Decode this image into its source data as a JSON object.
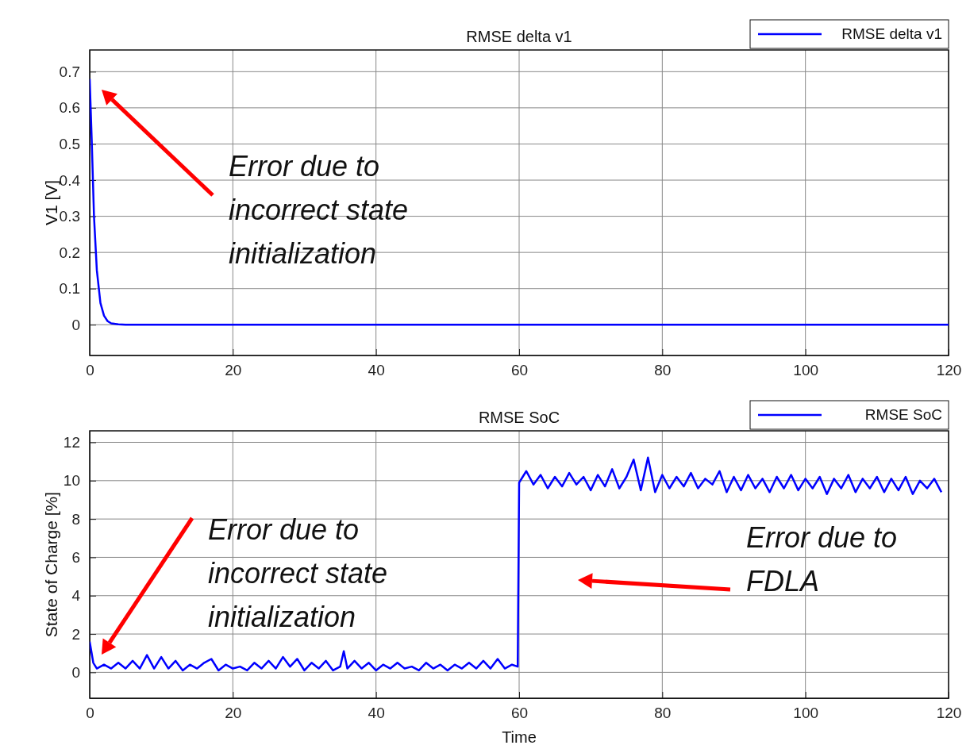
{
  "chart_data": [
    {
      "type": "line",
      "title": "RMSE delta v1",
      "ylabel": "V1 [V]",
      "xlim": [
        0,
        120
      ],
      "xticks": [
        0,
        20,
        40,
        60,
        80,
        100,
        120
      ],
      "ylim": [
        -0.085,
        0.76
      ],
      "yticks": [
        0,
        0.1,
        0.2,
        0.3,
        0.4,
        0.5,
        0.6,
        0.7
      ],
      "grid": true,
      "legend": "top right",
      "line_style": "solid",
      "series": [
        {
          "name": "RMSE delta v1",
          "color": "#0000ff",
          "x": [
            0,
            0.3,
            0.6,
            1,
            1.5,
            2,
            2.5,
            3,
            4,
            5,
            120
          ],
          "values": [
            0.68,
            0.5,
            0.3,
            0.15,
            0.06,
            0.025,
            0.01,
            0.004,
            0.001,
            0,
            0
          ]
        }
      ],
      "annotations": [
        "Error due to incorrect state initialization"
      ]
    },
    {
      "type": "line",
      "title": "RMSE SoC",
      "xlabel": "Time",
      "ylabel": "State of Charge [%]",
      "xlim": [
        0,
        120
      ],
      "xticks": [
        0,
        20,
        40,
        60,
        80,
        100,
        120
      ],
      "ylim": [
        -1.35,
        12.6
      ],
      "yticks": [
        0,
        2,
        4,
        6,
        8,
        10,
        12
      ],
      "grid": true,
      "legend": "top right",
      "line_style": "solid",
      "series": [
        {
          "name": "RMSE SoC",
          "color": "#0000ff",
          "x": [
            0,
            0.5,
            1,
            2,
            3,
            4,
            5,
            6,
            7,
            8,
            9,
            10,
            11,
            12,
            13,
            14,
            15,
            16,
            17,
            18,
            19,
            20,
            21,
            22,
            23,
            24,
            25,
            26,
            27,
            28,
            29,
            30,
            31,
            32,
            33,
            34,
            35,
            35.5,
            36,
            37,
            38,
            39,
            40,
            41,
            42,
            43,
            44,
            45,
            46,
            47,
            48,
            49,
            50,
            51,
            52,
            53,
            54,
            55,
            56,
            57,
            58,
            59,
            59.8,
            60,
            61,
            62,
            63,
            64,
            65,
            66,
            67,
            68,
            69,
            70,
            71,
            72,
            73,
            74,
            75,
            76,
            77,
            78,
            79,
            80,
            81,
            82,
            83,
            84,
            85,
            86,
            87,
            88,
            89,
            90,
            91,
            92,
            93,
            94,
            95,
            96,
            97,
            98,
            99,
            100,
            101,
            102,
            103,
            104,
            105,
            106,
            107,
            108,
            109,
            110,
            111,
            112,
            113,
            114,
            115,
            116,
            117,
            118,
            119
          ],
          "values": [
            1.6,
            0.5,
            0.2,
            0.4,
            0.2,
            0.5,
            0.2,
            0.6,
            0.2,
            0.9,
            0.2,
            0.8,
            0.2,
            0.6,
            0.1,
            0.4,
            0.2,
            0.5,
            0.7,
            0.1,
            0.4,
            0.2,
            0.3,
            0.1,
            0.5,
            0.2,
            0.6,
            0.2,
            0.8,
            0.3,
            0.7,
            0.1,
            0.5,
            0.2,
            0.6,
            0.1,
            0.3,
            1.1,
            0.2,
            0.6,
            0.2,
            0.5,
            0.1,
            0.4,
            0.2,
            0.5,
            0.2,
            0.3,
            0.1,
            0.5,
            0.2,
            0.4,
            0.1,
            0.4,
            0.2,
            0.5,
            0.2,
            0.6,
            0.2,
            0.7,
            0.2,
            0.4,
            0.3,
            9.9,
            10.5,
            9.8,
            10.3,
            9.6,
            10.2,
            9.7,
            10.4,
            9.8,
            10.2,
            9.5,
            10.3,
            9.7,
            10.6,
            9.6,
            10.2,
            11.1,
            9.5,
            11.2,
            9.4,
            10.3,
            9.6,
            10.2,
            9.7,
            10.4,
            9.6,
            10.1,
            9.8,
            10.5,
            9.4,
            10.2,
            9.5,
            10.3,
            9.6,
            10.1,
            9.4,
            10.2,
            9.6,
            10.3,
            9.5,
            10.1,
            9.6,
            10.2,
            9.3,
            10.1,
            9.6,
            10.3,
            9.4,
            10.1,
            9.6,
            10.2,
            9.4,
            10.1,
            9.5,
            10.2,
            9.3,
            10,
            9.6,
            10.1,
            9.4
          ]
        }
      ],
      "annotations": [
        "Error due to incorrect state initialization",
        "Error due to FDLA"
      ]
    }
  ]
}
